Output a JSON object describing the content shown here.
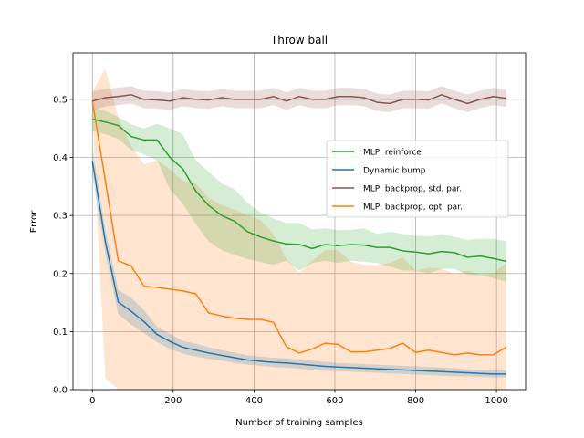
{
  "chart_data": {
    "type": "line",
    "title": "Throw ball",
    "xlabel": "Number of training samples",
    "ylabel": "Error",
    "xlim": [
      -48,
      1072
    ],
    "ylim": [
      0.0,
      0.58
    ],
    "xticks": [
      0,
      200,
      400,
      600,
      800,
      1000
    ],
    "yticks": [
      0.0,
      0.1,
      0.2,
      0.3,
      0.4,
      0.5
    ],
    "ytick_labels": [
      "0.0",
      "0.1",
      "0.2",
      "0.3",
      "0.4",
      "0.5"
    ],
    "grid": true,
    "legend_position": "center-right",
    "x": [
      0,
      32,
      64,
      96,
      128,
      160,
      192,
      224,
      256,
      288,
      320,
      352,
      384,
      416,
      448,
      480,
      512,
      544,
      576,
      608,
      640,
      672,
      704,
      736,
      768,
      800,
      832,
      864,
      896,
      928,
      960,
      992,
      1024
    ],
    "series": [
      {
        "name": "MLP, reinforce",
        "color": "#2ca02c",
        "values": [
          0.466,
          0.461,
          0.455,
          0.436,
          0.43,
          0.43,
          0.4,
          0.38,
          0.342,
          0.317,
          0.3,
          0.29,
          0.272,
          0.263,
          0.256,
          0.251,
          0.25,
          0.243,
          0.25,
          0.248,
          0.25,
          0.249,
          0.245,
          0.245,
          0.239,
          0.237,
          0.234,
          0.238,
          0.236,
          0.228,
          0.23,
          0.226,
          0.221
        ],
        "lower": [
          0.445,
          0.44,
          0.432,
          0.413,
          0.405,
          0.395,
          0.345,
          0.32,
          0.285,
          0.255,
          0.24,
          0.232,
          0.225,
          0.22,
          0.215,
          0.222,
          0.205,
          0.218,
          0.222,
          0.218,
          0.222,
          0.22,
          0.218,
          0.212,
          0.205,
          0.205,
          0.2,
          0.208,
          0.208,
          0.198,
          0.197,
          0.192,
          0.186
        ],
        "upper": [
          0.485,
          0.48,
          0.47,
          0.457,
          0.45,
          0.458,
          0.45,
          0.44,
          0.395,
          0.375,
          0.355,
          0.345,
          0.322,
          0.305,
          0.295,
          0.287,
          0.287,
          0.276,
          0.278,
          0.275,
          0.275,
          0.278,
          0.268,
          0.272,
          0.268,
          0.265,
          0.264,
          0.268,
          0.263,
          0.258,
          0.26,
          0.26,
          0.256
        ]
      },
      {
        "name": "Dynamic bump",
        "color": "#1f77b4",
        "values": [
          0.394,
          0.255,
          0.151,
          0.135,
          0.117,
          0.095,
          0.083,
          0.073,
          0.068,
          0.063,
          0.059,
          0.055,
          0.051,
          0.049,
          0.047,
          0.046,
          0.044,
          0.042,
          0.04,
          0.039,
          0.038,
          0.037,
          0.036,
          0.035,
          0.034,
          0.033,
          0.032,
          0.031,
          0.03,
          0.029,
          0.028,
          0.027,
          0.027
        ],
        "lower": [
          0.37,
          0.235,
          0.13,
          0.112,
          0.097,
          0.082,
          0.07,
          0.062,
          0.057,
          0.053,
          0.05,
          0.046,
          0.043,
          0.041,
          0.039,
          0.038,
          0.036,
          0.034,
          0.032,
          0.032,
          0.031,
          0.03,
          0.029,
          0.028,
          0.027,
          0.026,
          0.025,
          0.024,
          0.023,
          0.023,
          0.022,
          0.021,
          0.021
        ],
        "upper": [
          0.418,
          0.275,
          0.172,
          0.158,
          0.137,
          0.108,
          0.096,
          0.084,
          0.079,
          0.073,
          0.068,
          0.064,
          0.059,
          0.057,
          0.055,
          0.054,
          0.052,
          0.05,
          0.048,
          0.046,
          0.045,
          0.044,
          0.043,
          0.042,
          0.041,
          0.04,
          0.039,
          0.038,
          0.037,
          0.035,
          0.034,
          0.033,
          0.033
        ]
      },
      {
        "name": "MLP, backprop, std. par.",
        "color": "#8c564b",
        "values": [
          0.497,
          0.503,
          0.505,
          0.508,
          0.5,
          0.499,
          0.497,
          0.503,
          0.5,
          0.499,
          0.503,
          0.5,
          0.5,
          0.5,
          0.505,
          0.497,
          0.505,
          0.5,
          0.5,
          0.505,
          0.505,
          0.503,
          0.495,
          0.493,
          0.5,
          0.5,
          0.499,
          0.508,
          0.5,
          0.493,
          0.5,
          0.505,
          0.502
        ],
        "lower": [
          0.48,
          0.488,
          0.49,
          0.493,
          0.485,
          0.484,
          0.482,
          0.488,
          0.485,
          0.484,
          0.488,
          0.485,
          0.485,
          0.485,
          0.49,
          0.482,
          0.49,
          0.485,
          0.485,
          0.49,
          0.49,
          0.488,
          0.48,
          0.478,
          0.485,
          0.485,
          0.484,
          0.493,
          0.485,
          0.478,
          0.485,
          0.49,
          0.487
        ],
        "upper": [
          0.514,
          0.518,
          0.52,
          0.523,
          0.515,
          0.514,
          0.512,
          0.518,
          0.515,
          0.514,
          0.518,
          0.515,
          0.515,
          0.515,
          0.52,
          0.512,
          0.52,
          0.515,
          0.515,
          0.52,
          0.52,
          0.518,
          0.51,
          0.508,
          0.515,
          0.515,
          0.514,
          0.523,
          0.515,
          0.508,
          0.515,
          0.52,
          0.517
        ]
      },
      {
        "name": "MLP, backprop, opt. par.",
        "color": "#ff7f0e",
        "values": [
          0.497,
          0.36,
          0.222,
          0.213,
          0.178,
          0.176,
          0.173,
          0.17,
          0.165,
          0.132,
          0.127,
          0.123,
          0.121,
          0.121,
          0.116,
          0.074,
          0.063,
          0.07,
          0.08,
          0.078,
          0.065,
          0.065,
          0.068,
          0.071,
          0.08,
          0.064,
          0.068,
          0.064,
          0.06,
          0.063,
          0.06,
          0.06,
          0.073
        ],
        "lower": [
          0.46,
          0.02,
          0.0,
          0.0,
          0.0,
          0.0,
          0.0,
          0.0,
          0.0,
          0.0,
          0.0,
          0.0,
          0.0,
          0.0,
          0.0,
          0.0,
          0.0,
          0.0,
          0.0,
          0.0,
          0.0,
          0.0,
          0.0,
          0.0,
          0.0,
          0.0,
          0.0,
          0.0,
          0.0,
          0.0,
          0.0,
          0.0,
          0.0
        ],
        "upper": [
          0.513,
          0.553,
          0.468,
          0.42,
          0.388,
          0.395,
          0.38,
          0.36,
          0.355,
          0.33,
          0.318,
          0.31,
          0.3,
          0.292,
          0.268,
          0.225,
          0.202,
          0.222,
          0.24,
          0.24,
          0.22,
          0.215,
          0.215,
          0.218,
          0.228,
          0.205,
          0.21,
          0.208,
          0.2,
          0.205,
          0.198,
          0.2,
          0.218
        ]
      }
    ]
  }
}
